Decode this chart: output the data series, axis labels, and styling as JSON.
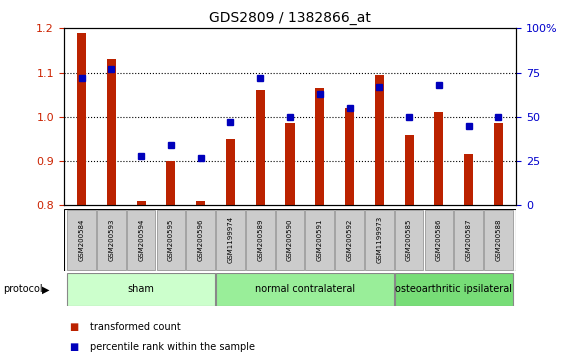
{
  "title": "GDS2809 / 1382866_at",
  "categories": [
    "GSM200584",
    "GSM200593",
    "GSM200594",
    "GSM200595",
    "GSM200596",
    "GSM1199974",
    "GSM200589",
    "GSM200590",
    "GSM200591",
    "GSM200592",
    "GSM1199973",
    "GSM200585",
    "GSM200586",
    "GSM200587",
    "GSM200588"
  ],
  "red_values": [
    1.19,
    1.13,
    0.81,
    0.9,
    0.81,
    0.95,
    1.06,
    0.985,
    1.065,
    1.02,
    1.095,
    0.96,
    1.01,
    0.915,
    0.985
  ],
  "blue_values_pct": [
    72,
    77,
    28,
    34,
    27,
    47,
    72,
    50,
    63,
    55,
    67,
    50,
    68,
    45,
    50
  ],
  "ylim_left": [
    0.8,
    1.2
  ],
  "ylim_right": [
    0,
    100
  ],
  "yticks_left": [
    0.8,
    0.9,
    1.0,
    1.1,
    1.2
  ],
  "yticks_right": [
    0,
    25,
    50,
    75,
    100
  ],
  "ytick_labels_right": [
    "0",
    "25",
    "50",
    "75",
    "100%"
  ],
  "groups": [
    {
      "label": "sham",
      "start": 0,
      "end": 4
    },
    {
      "label": "normal contralateral",
      "start": 5,
      "end": 10
    },
    {
      "label": "osteoarthritic ipsilateral",
      "start": 11,
      "end": 14
    }
  ],
  "group_colors": [
    "#ccffcc",
    "#99ee99",
    "#77dd77"
  ],
  "protocol_label": "protocol",
  "red_color": "#bb2200",
  "blue_color": "#0000bb",
  "bar_width": 0.55,
  "tick_label_color_left": "#cc2200",
  "tick_label_color_right": "#0000cc",
  "legend": [
    {
      "label": "transformed count",
      "color": "#bb2200"
    },
    {
      "label": "percentile rank within the sample",
      "color": "#0000bb"
    }
  ],
  "sample_box_color": "#cccccc",
  "fig_bg": "#ffffff"
}
